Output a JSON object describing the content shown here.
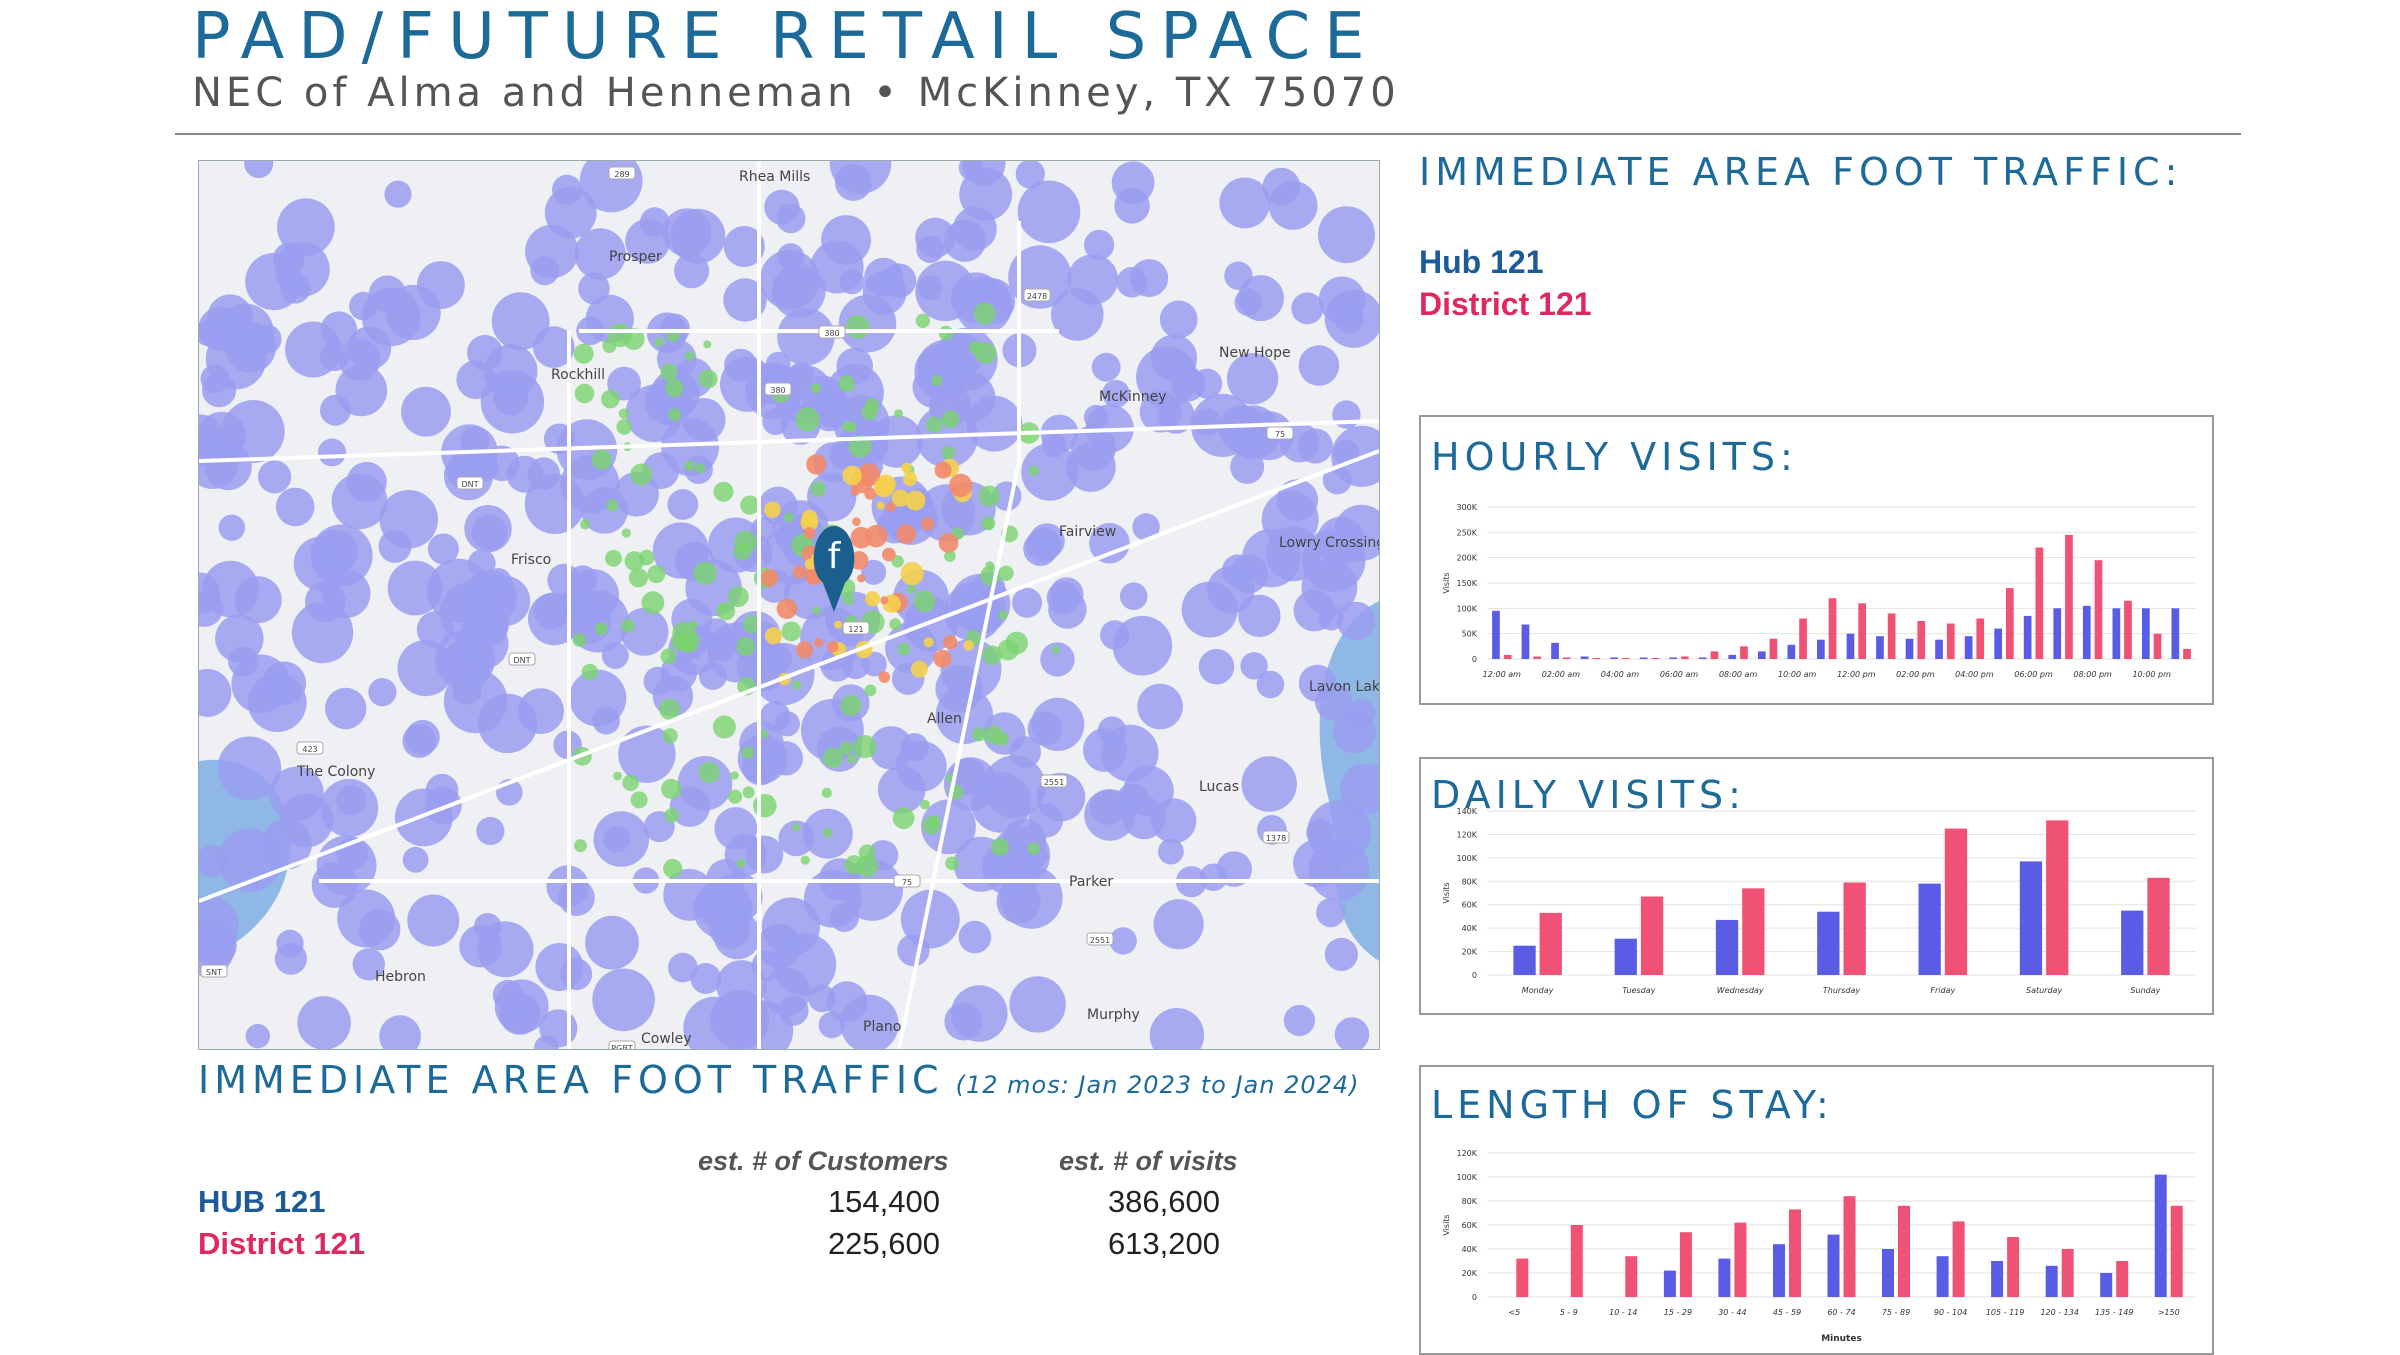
{
  "header": {
    "title": "PAD/FUTURE RETAIL SPACE",
    "subtitle": "NEC of Alma and Henneman • McKinney, TX 75070"
  },
  "map": {
    "labels": [
      "Rhea Mills",
      "Prosper",
      "New Hope",
      "McKinney",
      "Rockhill",
      "Frisco",
      "Fairview",
      "Lowry Crossing",
      "Lavon Lake",
      "Allen",
      "The Colony",
      "Lucas",
      "Parker",
      "Hebron",
      "Plano",
      "Murphy",
      "Cowley"
    ],
    "road_shields": [
      "289",
      "380",
      "2478",
      "75",
      "380",
      "DNT",
      "DNT",
      "121",
      "423",
      "75",
      "2551",
      "2551",
      "1378",
      "SNT",
      "PGBT"
    ],
    "pin_letter": "f"
  },
  "foot_traffic": {
    "heading": "IMMEDIATE AREA FOOT TRAFFIC:",
    "legend_hub": "Hub 121",
    "legend_district": "District 121"
  },
  "summary": {
    "heading": "IMMEDIATE AREA FOOT TRAFFIC",
    "note": "(12 mos: Jan 2023 to Jan 2024)",
    "col_customers": "est. # of Customers",
    "col_visits": "est. # of visits",
    "rows": [
      {
        "name": "HUB 121",
        "customers": "154,400",
        "visits": "386,600"
      },
      {
        "name": "District 121",
        "customers": "225,600",
        "visits": "613,200"
      }
    ]
  },
  "colors": {
    "hub": "#5b5ce6",
    "district": "#f05276",
    "title": "#1c6a9a"
  },
  "chart_data": [
    {
      "type": "bar",
      "title": "HOURLY VISITS:",
      "ylabel": "Visits",
      "ylim": [
        0,
        300000
      ],
      "yticks": [
        "0",
        "50K",
        "100K",
        "150K",
        "200K",
        "250K",
        "300K"
      ],
      "categories": [
        "12:00 am",
        "",
        "02:00 am",
        "",
        "04:00 am",
        "",
        "06:00 am",
        "",
        "08:00 am",
        "",
        "10:00 am",
        "",
        "12:00 pm",
        "",
        "02:00 pm",
        "",
        "04:00 pm",
        "",
        "06:00 pm",
        "",
        "08:00 pm",
        "",
        "10:00 pm",
        ""
      ],
      "series": [
        {
          "name": "Hub 121",
          "values": [
            95000,
            68000,
            32000,
            5000,
            3000,
            3000,
            3000,
            3000,
            8000,
            15000,
            28000,
            38000,
            50000,
            45000,
            40000,
            38000,
            45000,
            60000,
            85000,
            100000,
            105000,
            100000,
            100000,
            100000
          ]
        },
        {
          "name": "District 121",
          "values": [
            8000,
            5000,
            3000,
            2000,
            2000,
            2000,
            5000,
            15000,
            25000,
            40000,
            80000,
            120000,
            110000,
            90000,
            75000,
            70000,
            80000,
            140000,
            220000,
            245000,
            195000,
            115000,
            50000,
            20000
          ]
        }
      ]
    },
    {
      "type": "bar",
      "title": "DAILY VISITS:",
      "ylabel": "Visits",
      "ylim": [
        0,
        140000
      ],
      "yticks": [
        "0",
        "20K",
        "40K",
        "60K",
        "80K",
        "100K",
        "120K",
        "140K"
      ],
      "categories": [
        "Monday",
        "Tuesday",
        "Wednesday",
        "Thursday",
        "Friday",
        "Saturday",
        "Sunday"
      ],
      "series": [
        {
          "name": "Hub 121",
          "values": [
            25000,
            31000,
            47000,
            54000,
            78000,
            97000,
            55000
          ]
        },
        {
          "name": "District 121",
          "values": [
            53000,
            67000,
            74000,
            79000,
            125000,
            132000,
            83000
          ]
        }
      ]
    },
    {
      "type": "bar",
      "title": "LENGTH OF STAY:",
      "xlabel": "Minutes",
      "ylabel": "Visits",
      "ylim": [
        0,
        120000
      ],
      "yticks": [
        "0",
        "20K",
        "40K",
        "60K",
        "80K",
        "100K",
        "120K"
      ],
      "categories": [
        "<5",
        "5 - 9",
        "10 - 14",
        "15 - 29",
        "30 - 44",
        "45 - 59",
        "60 - 74",
        "75 - 89",
        "90 - 104",
        "105 - 119",
        "120 - 134",
        "135 - 149",
        ">150"
      ],
      "series": [
        {
          "name": "Hub 121",
          "values": [
            0,
            0,
            0,
            22000,
            32000,
            44000,
            52000,
            40000,
            34000,
            30000,
            26000,
            20000,
            102000
          ]
        },
        {
          "name": "District 121",
          "values": [
            32000,
            60000,
            34000,
            54000,
            62000,
            73000,
            84000,
            76000,
            63000,
            50000,
            40000,
            30000,
            76000
          ]
        }
      ]
    }
  ]
}
